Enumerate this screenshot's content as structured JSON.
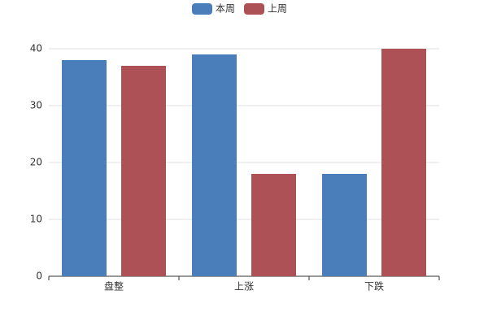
{
  "chart_data": {
    "type": "bar",
    "categories": [
      "盘整",
      "上涨",
      "下跌"
    ],
    "series": [
      {
        "name": "本周",
        "color": "#4a7ebb",
        "values": [
          38,
          39,
          18
        ]
      },
      {
        "name": "上周",
        "color": "#ae5156",
        "values": [
          37,
          18,
          40
        ]
      }
    ],
    "ylim": [
      0,
      40
    ],
    "yticks": [
      0,
      10,
      20,
      30,
      40
    ],
    "grid": true,
    "legend": "top"
  }
}
